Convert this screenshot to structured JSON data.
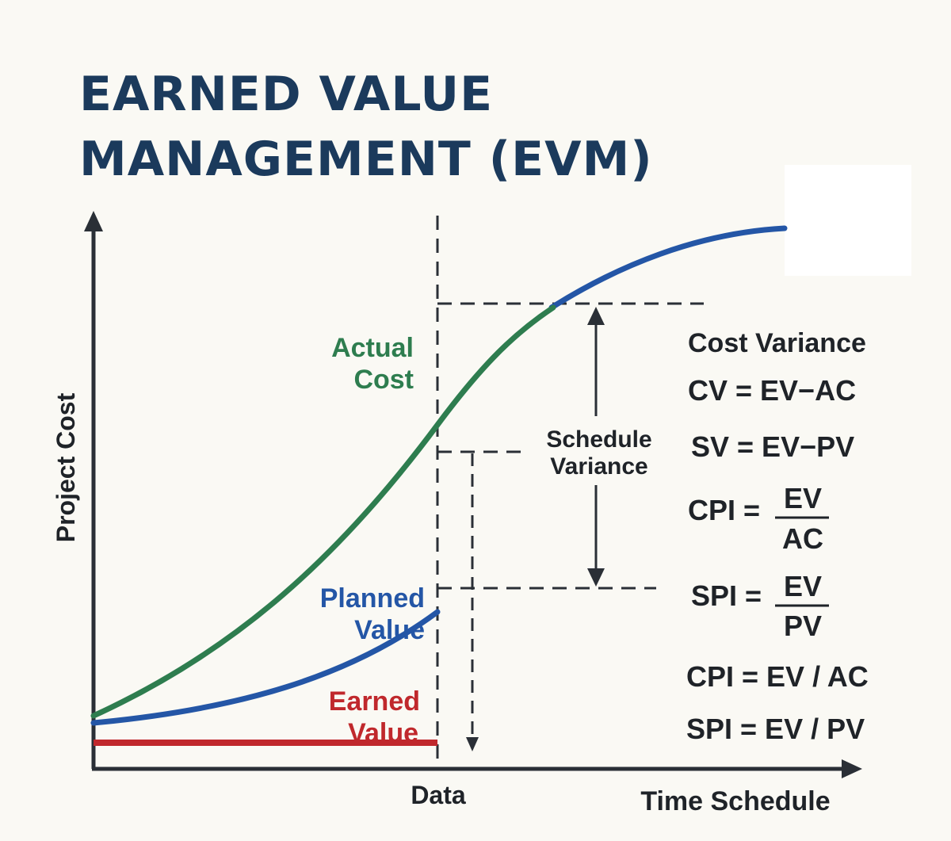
{
  "title": {
    "line1": "EARNED VALUE",
    "line2": "MANAGEMENT (EVM)"
  },
  "axes": {
    "y_label": "Project Cost",
    "x_label": "Time Schedule",
    "data_date_label": "Data"
  },
  "curves": {
    "actual_cost": {
      "label_line1": "Actual",
      "label_line2": "Cost",
      "color": "#2e7d4f"
    },
    "planned_value": {
      "label_line1": "Planned",
      "label_line2": "Value",
      "color": "#2456a6"
    },
    "earned_value": {
      "label_line1": "Earned",
      "label_line2": "Value",
      "color": "#c0282c"
    }
  },
  "schedule_variance": {
    "line1": "Schedule",
    "line2": "Variance"
  },
  "formulas": {
    "cost_variance_heading": "Cost Variance",
    "cv": "CV = EV−AC",
    "sv": "SV = EV−PV",
    "cpi": {
      "lhs": "CPI =",
      "numerator": "EV",
      "denominator": "AC"
    },
    "spi": {
      "lhs": "SPI =",
      "numerator": "EV",
      "denominator": "PV"
    },
    "cpi_inline": "CPI = EV / AC",
    "spi_inline": "SPI = EV / PV"
  },
  "colors": {
    "axis": "#2a2f36",
    "text_dark": "#1f2328",
    "title": "#1b3a5c"
  }
}
